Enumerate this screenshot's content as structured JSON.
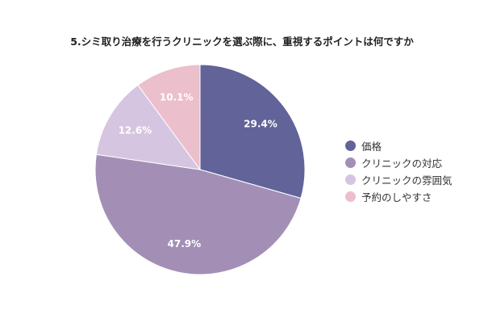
{
  "chart_data": {
    "type": "pie",
    "title": "5.シミ取り治療を行うクリニックを選ぶ際に、重視するポイントは何ですか",
    "slices": [
      {
        "label": "価格",
        "value": 29.4,
        "display": "29.4%",
        "color": "#616399"
      },
      {
        "label": "クリニックの対応",
        "value": 47.9,
        "display": "47.9%",
        "color": "#a38fb6"
      },
      {
        "label": "クリニックの雰囲気",
        "value": 12.6,
        "display": "12.6%",
        "color": "#d6c5e0"
      },
      {
        "label": "予約のしやすさ",
        "value": 10.1,
        "display": "10.1%",
        "color": "#ecbfcd"
      }
    ],
    "start_angle_deg": 0,
    "direction": "clockwise",
    "legend_position": "right",
    "label_color": "#ffffff"
  }
}
